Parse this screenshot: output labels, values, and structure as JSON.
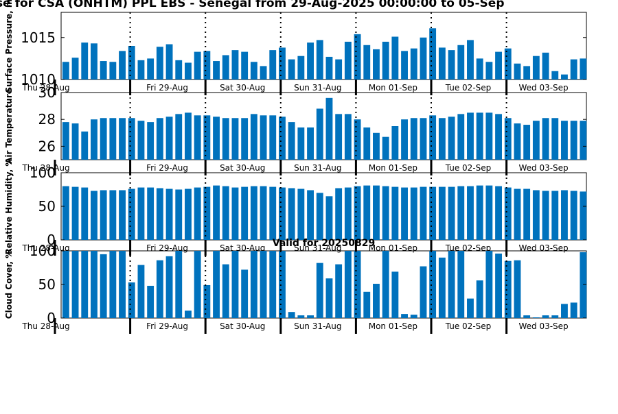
{
  "page_title": "se for CSA (ONHTM) PPL EBS  - Senegal from 29-Aug-2025 00:00:00 to 05-Sep",
  "colors": {
    "bar": "#0072bd",
    "axis": "#000000",
    "background": "#ffffff"
  },
  "chart_data": [
    {
      "type": "bar",
      "ylabel": "Surface Pressure, m",
      "ylim": [
        1010,
        1018
      ],
      "yticks": [
        1010,
        1015
      ],
      "title": "",
      "values": [
        1012.1,
        1012.6,
        1014.4,
        1014.3,
        1012.2,
        1012.1,
        1013.4,
        1014.0,
        1012.3,
        1012.5,
        1013.9,
        1014.2,
        1012.3,
        1012.0,
        1013.3,
        1013.4,
        1012.2,
        1012.9,
        1013.5,
        1013.3,
        1012.1,
        1011.6,
        1013.5,
        1013.8,
        1012.4,
        1012.8,
        1014.4,
        1014.7,
        1012.7,
        1012.4,
        1014.5,
        1015.4,
        1014.1,
        1013.6,
        1014.5,
        1015.1,
        1013.4,
        1013.7,
        1015.0,
        1016.1,
        1013.8,
        1013.5,
        1014.1,
        1014.7,
        1012.5,
        1012.1,
        1013.3,
        1013.7,
        1011.9,
        1011.6,
        1012.8,
        1013.2,
        1011.0,
        1010.6,
        1012.4,
        1012.5
      ]
    },
    {
      "type": "bar",
      "ylabel": "Air Temperature",
      "ylim": [
        25,
        30
      ],
      "yticks": [
        26,
        28,
        30
      ],
      "title": "",
      "values": [
        27.8,
        27.7,
        27.1,
        28.0,
        28.1,
        28.1,
        28.1,
        28.1,
        27.9,
        27.8,
        28.1,
        28.2,
        28.4,
        28.5,
        28.3,
        28.3,
        28.2,
        28.1,
        28.1,
        28.1,
        28.4,
        28.3,
        28.3,
        28.2,
        27.8,
        27.4,
        27.4,
        28.8,
        29.6,
        28.4,
        28.4,
        28.0,
        27.4,
        27.0,
        26.7,
        27.5,
        28.0,
        28.1,
        28.1,
        28.3,
        28.1,
        28.2,
        28.4,
        28.5,
        28.5,
        28.5,
        28.4,
        28.1,
        27.7,
        27.6,
        27.9,
        28.1,
        28.1,
        27.9,
        27.9,
        27.9
      ]
    },
    {
      "type": "bar",
      "ylabel": "Relative Humidity, %",
      "ylim": [
        0,
        100
      ],
      "yticks": [
        0,
        50,
        100
      ],
      "title": "",
      "values": [
        80,
        79,
        78,
        73,
        74,
        74,
        74,
        76,
        78,
        78,
        77,
        76,
        75,
        76,
        78,
        79,
        81,
        80,
        78,
        79,
        80,
        80,
        79,
        78,
        77,
        76,
        74,
        70,
        65,
        77,
        78,
        80,
        81,
        81,
        80,
        79,
        78,
        78,
        79,
        79,
        79,
        79,
        80,
        80,
        81,
        81,
        80,
        78,
        76,
        76,
        74,
        73,
        73,
        74,
        73,
        72
      ]
    },
    {
      "type": "bar",
      "ylabel": "Cloud Cover, %",
      "ylim": [
        0,
        100
      ],
      "yticks": [
        0,
        50,
        100
      ],
      "title": "Valid for 20250829",
      "values": [
        100,
        100,
        100,
        100,
        95,
        100,
        100,
        53,
        79,
        48,
        86,
        92,
        100,
        11,
        100,
        49,
        100,
        80,
        100,
        72,
        100,
        100,
        100,
        100,
        9,
        4,
        4,
        82,
        59,
        80,
        100,
        100,
        39,
        51,
        100,
        69,
        6,
        5,
        77,
        100,
        90,
        100,
        100,
        29,
        56,
        100,
        96,
        85,
        86,
        4,
        1,
        4,
        4,
        21,
        23,
        98
      ]
    }
  ],
  "day_labels": [
    "Thu 28-Aug",
    "Fri 29-Aug",
    "Sat 30-Aug",
    "Sun 31-Aug",
    "Mon 01-Sep",
    "Tue 02-Sep",
    "Wed 03-Sep"
  ]
}
